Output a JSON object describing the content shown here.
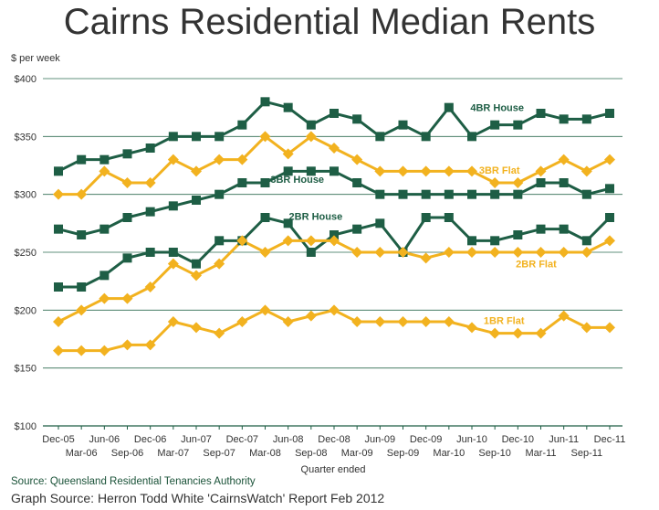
{
  "chart_data": {
    "type": "line",
    "title": "Cairns Residential Median Rents",
    "ylabel": "$ per week",
    "xlabel": "Quarter ended",
    "ylim": [
      100,
      400
    ],
    "yticks": [
      "$100",
      "$150",
      "$200",
      "$250",
      "$300",
      "$350",
      "$400"
    ],
    "grid": "horizontal",
    "categories": [
      "Dec-05",
      "Mar-06",
      "Jun-06",
      "Sep-06",
      "Dec-06",
      "Mar-07",
      "Jun-07",
      "Sep-07",
      "Dec-07",
      "Mar-08",
      "Jun-08",
      "Sep-08",
      "Dec-08",
      "Mar-09",
      "Jun-09",
      "Sep-09",
      "Dec-09",
      "Mar-10",
      "Jun-10",
      "Sep-10",
      "Dec-10",
      "Mar-11",
      "Jun-11",
      "Sep-11",
      "Dec-11"
    ],
    "series": [
      {
        "name": "4BR House",
        "color": "#1e5e45",
        "marker": "square",
        "values": [
          320,
          330,
          330,
          335,
          340,
          350,
          350,
          350,
          360,
          380,
          375,
          360,
          370,
          365,
          350,
          360,
          350,
          375,
          350,
          360,
          360,
          370,
          365,
          365,
          370
        ]
      },
      {
        "name": "3BR Flat",
        "color": "#f2b21f",
        "marker": "diamond",
        "values": [
          300,
          300,
          320,
          310,
          310,
          330,
          320,
          330,
          330,
          350,
          335,
          350,
          340,
          330,
          320,
          320,
          320,
          320,
          320,
          310,
          310,
          320,
          330,
          320,
          330
        ]
      },
      {
        "name": "3BR House",
        "color": "#1e5e45",
        "marker": "square",
        "values": [
          270,
          265,
          270,
          280,
          285,
          290,
          295,
          300,
          310,
          310,
          320,
          320,
          320,
          310,
          300,
          300,
          300,
          300,
          300,
          300,
          300,
          310,
          310,
          300,
          305
        ]
      },
      {
        "name": "2BR House",
        "color": "#1e5e45",
        "marker": "square",
        "values": [
          220,
          220,
          230,
          245,
          250,
          250,
          240,
          260,
          260,
          280,
          275,
          250,
          265,
          270,
          275,
          250,
          280,
          280,
          260,
          260,
          265,
          270,
          270,
          260,
          280
        ]
      },
      {
        "name": "2BR Flat",
        "color": "#f2b21f",
        "marker": "diamond",
        "values": [
          190,
          200,
          210,
          210,
          220,
          240,
          230,
          240,
          260,
          250,
          260,
          260,
          260,
          250,
          250,
          250,
          245,
          250,
          250,
          250,
          250,
          250,
          250,
          250,
          260
        ]
      },
      {
        "name": "1BR Flat",
        "color": "#f2b21f",
        "marker": "diamond",
        "values": [
          165,
          165,
          165,
          170,
          170,
          190,
          185,
          180,
          190,
          200,
          190,
          195,
          200,
          190,
          190,
          190,
          190,
          190,
          185,
          180,
          180,
          180,
          195,
          185,
          185
        ]
      }
    ]
  },
  "footer": {
    "source": "Source: Queensland Residential Tenancies Authority",
    "graph_source": "Graph Source: Herron Todd White 'CairnsWatch' Report Feb 2012"
  }
}
